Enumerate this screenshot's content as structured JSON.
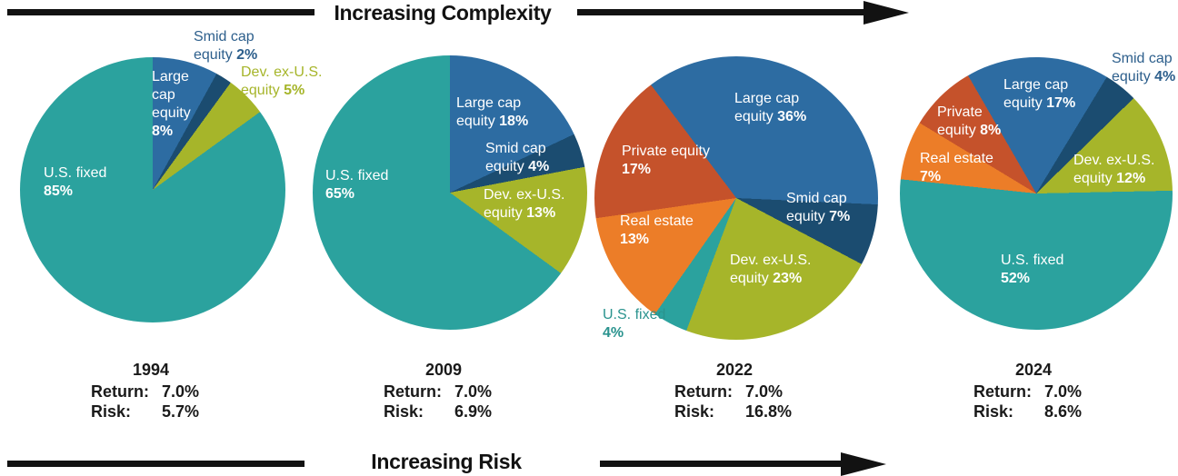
{
  "arrows": {
    "top_label": "Increasing Complexity",
    "bottom_label": "Increasing Risk"
  },
  "stat_labels": {
    "return": "Return:",
    "risk": "Risk:"
  },
  "colors": {
    "teal": "#2BA29E",
    "blue": "#2D6CA2",
    "navy": "#1B4C70",
    "olive": "#A6B52A",
    "orange": "#EC7D28",
    "rust": "#C5522B",
    "navy_text": "#2D5F8C",
    "olive_text": "#A6B52A",
    "teal_text": "#2A938E",
    "arrow_black": "#121212"
  },
  "chart_data": [
    {
      "type": "pie",
      "title": "1994",
      "return_value": "7.0%",
      "risk_value": "5.7%",
      "start_angle_deg": 0,
      "slices": [
        {
          "label": "Large cap equity",
          "value": 8,
          "color": "blue",
          "label_color": "white",
          "lines": [
            [
              "Large",
              ""
            ],
            [
              "cap",
              ""
            ],
            [
              "equity",
              ""
            ],
            [
              "",
              "8%"
            ]
          ]
        },
        {
          "label": "Smid cap equity",
          "value": 2,
          "color": "navy",
          "label_color": "navy_text",
          "lines": [
            [
              "Smid cap",
              ""
            ],
            [
              "equity ",
              "2%"
            ]
          ]
        },
        {
          "label": "Dev. ex-U.S. equity",
          "value": 5,
          "color": "olive",
          "label_color": "olive_text",
          "lines": [
            [
              "Dev. ex-U.S.",
              ""
            ],
            [
              "equity ",
              "5%"
            ]
          ]
        },
        {
          "label": "U.S. fixed",
          "value": 85,
          "color": "teal",
          "label_color": "white",
          "lines": [
            [
              "U.S. fixed",
              ""
            ],
            [
              "",
              "85%"
            ]
          ]
        }
      ]
    },
    {
      "type": "pie",
      "title": "2009",
      "return_value": "7.0%",
      "risk_value": "6.9%",
      "start_angle_deg": 0,
      "slices": [
        {
          "label": "Large cap equity",
          "value": 18,
          "color": "blue",
          "label_color": "white",
          "lines": [
            [
              "Large cap",
              ""
            ],
            [
              "equity ",
              "18%"
            ]
          ]
        },
        {
          "label": "Smid cap equity",
          "value": 4,
          "color": "navy",
          "label_color": "white",
          "lines": [
            [
              "Smid cap",
              ""
            ],
            [
              "equity ",
              "4%"
            ]
          ]
        },
        {
          "label": "Dev. ex-U.S. equity",
          "value": 13,
          "color": "olive",
          "label_color": "white",
          "lines": [
            [
              "Dev. ex-U.S.",
              ""
            ],
            [
              "equity ",
              "13%"
            ]
          ]
        },
        {
          "label": "U.S. fixed",
          "value": 65,
          "color": "teal",
          "label_color": "white",
          "lines": [
            [
              "U.S. fixed",
              ""
            ],
            [
              "",
              "65%"
            ]
          ]
        }
      ]
    },
    {
      "type": "pie",
      "title": "2022",
      "return_value": "7.0%",
      "risk_value": "16.8%",
      "start_angle_deg": -37,
      "slices": [
        {
          "label": "Large cap equity",
          "value": 36,
          "color": "blue",
          "label_color": "white",
          "lines": [
            [
              "Large cap",
              ""
            ],
            [
              "equity ",
              "36%"
            ]
          ]
        },
        {
          "label": "Smid cap equity",
          "value": 7,
          "color": "navy",
          "label_color": "white",
          "lines": [
            [
              "Smid cap",
              ""
            ],
            [
              "equity ",
              "7%"
            ]
          ]
        },
        {
          "label": "Dev. ex-U.S. equity",
          "value": 23,
          "color": "olive",
          "label_color": "white",
          "lines": [
            [
              "Dev. ex-U.S.",
              ""
            ],
            [
              "equity ",
              "23%"
            ]
          ]
        },
        {
          "label": "U.S. fixed",
          "value": 4,
          "color": "teal",
          "label_color": "teal_text",
          "lines": [
            [
              "U.S. fixed",
              ""
            ],
            [
              "",
              "4%"
            ]
          ]
        },
        {
          "label": "Real estate",
          "value": 13,
          "color": "orange",
          "label_color": "white",
          "lines": [
            [
              "Real estate",
              ""
            ],
            [
              "",
              "13%"
            ]
          ]
        },
        {
          "label": "Private equity",
          "value": 17,
          "color": "rust",
          "label_color": "white",
          "lines": [
            [
              "Private equity",
              ""
            ],
            [
              "",
              "17%"
            ]
          ]
        }
      ]
    },
    {
      "type": "pie",
      "title": "2024",
      "return_value": "7.0%",
      "risk_value": "8.6%",
      "start_angle_deg": -30,
      "slices": [
        {
          "label": "Large cap equity",
          "value": 17,
          "color": "blue",
          "label_color": "white",
          "lines": [
            [
              "Large cap",
              ""
            ],
            [
              "equity ",
              "17%"
            ]
          ]
        },
        {
          "label": "Smid cap equity",
          "value": 4,
          "color": "navy",
          "label_color": "navy_text",
          "lines": [
            [
              "Smid cap",
              ""
            ],
            [
              "equity ",
              "4%"
            ]
          ]
        },
        {
          "label": "Dev. ex-U.S. equity",
          "value": 12,
          "color": "olive",
          "label_color": "white",
          "lines": [
            [
              "Dev. ex-U.S.",
              ""
            ],
            [
              "equity ",
              "12%"
            ]
          ]
        },
        {
          "label": "U.S. fixed",
          "value": 52,
          "color": "teal",
          "label_color": "white",
          "lines": [
            [
              "U.S. fixed",
              ""
            ],
            [
              "",
              "52%"
            ]
          ]
        },
        {
          "label": "Real estate",
          "value": 7,
          "color": "orange",
          "label_color": "white",
          "lines": [
            [
              "Real estate",
              ""
            ],
            [
              "",
              "7%"
            ]
          ]
        },
        {
          "label": "Private equity",
          "value": 8,
          "color": "rust",
          "label_color": "white",
          "lines": [
            [
              "Private",
              ""
            ],
            [
              "equity ",
              "8%"
            ]
          ]
        }
      ]
    }
  ]
}
